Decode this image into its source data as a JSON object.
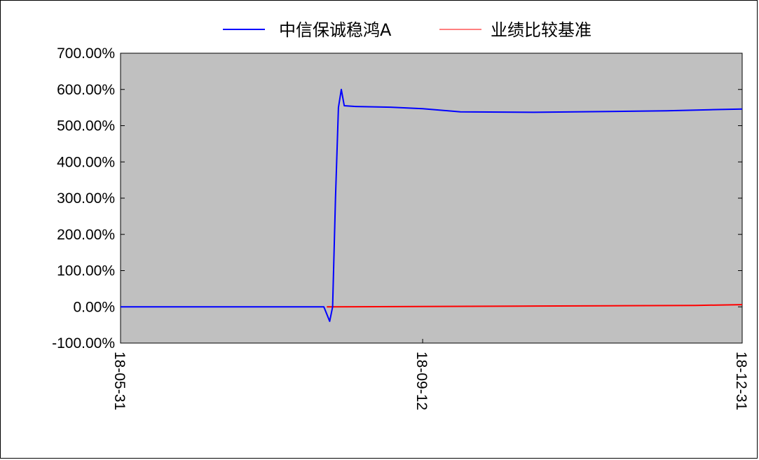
{
  "chart_data": {
    "type": "line",
    "title": "",
    "xlabel": "",
    "ylabel": "",
    "x_ticks": [
      "18-05-31",
      "18-09-12",
      "18-12-31"
    ],
    "x_range": [
      "2018-05-31",
      "2018-12-31"
    ],
    "ylim": [
      -100,
      700
    ],
    "y_ticks": [
      -100,
      0,
      100,
      200,
      300,
      400,
      500,
      600,
      700
    ],
    "y_tick_labels": [
      "-100.00%",
      "0.00%",
      "100.00%",
      "200.00%",
      "300.00%",
      "400.00%",
      "500.00%",
      "600.00%",
      "700.00%"
    ],
    "grid": false,
    "legend_position": "top",
    "plot_background": "#c0c0c0",
    "series": [
      {
        "name": "中信保诚稳鸿A",
        "color": "#0000ff",
        "points": [
          [
            "2018-05-31",
            0
          ],
          [
            "2018-08-09",
            0
          ],
          [
            "2018-08-10",
            -20
          ],
          [
            "2018-08-11",
            -40
          ],
          [
            "2018-08-12",
            0
          ],
          [
            "2018-08-13",
            300
          ],
          [
            "2018-08-14",
            550
          ],
          [
            "2018-08-15",
            600
          ],
          [
            "2018-08-16",
            555
          ],
          [
            "2018-08-20",
            553
          ],
          [
            "2018-09-01",
            551
          ],
          [
            "2018-09-12",
            547
          ],
          [
            "2018-09-25",
            538
          ],
          [
            "2018-10-20",
            537
          ],
          [
            "2018-11-15",
            539
          ],
          [
            "2018-12-05",
            541
          ],
          [
            "2018-12-20",
            544
          ],
          [
            "2018-12-31",
            546
          ]
        ]
      },
      {
        "name": "业绩比较基准",
        "color": "#ff0000",
        "points": [
          [
            "2018-08-10",
            0
          ],
          [
            "2018-09-12",
            1
          ],
          [
            "2018-10-15",
            2
          ],
          [
            "2018-11-15",
            3
          ],
          [
            "2018-12-15",
            4
          ],
          [
            "2018-12-31",
            6
          ]
        ]
      }
    ]
  }
}
